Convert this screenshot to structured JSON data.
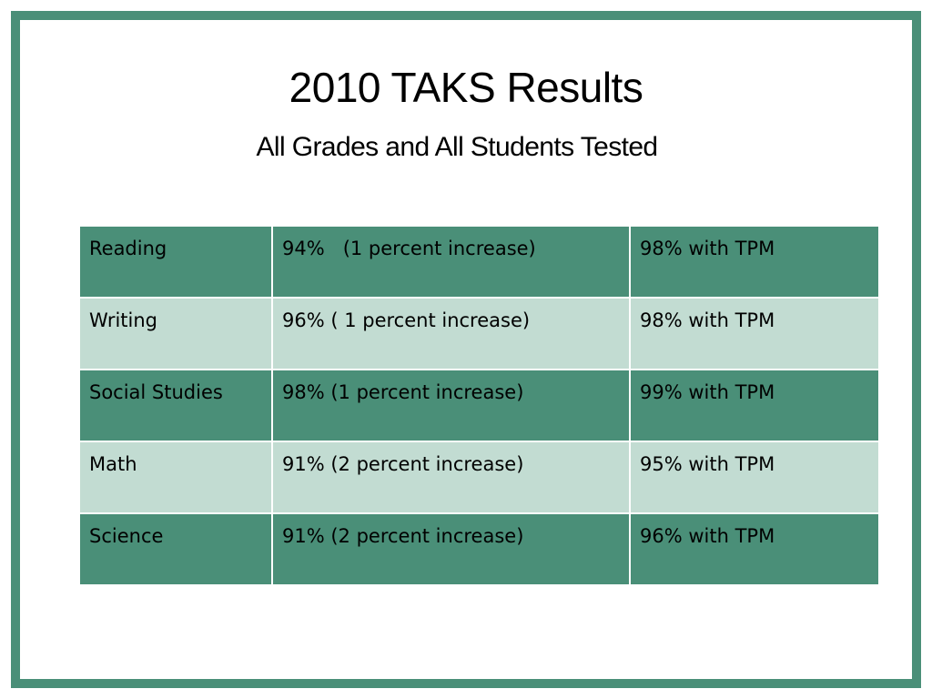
{
  "title": "2010 TAKS Results",
  "subtitle": "All Grades and All Students Tested",
  "colors": {
    "frame": "#4a8f78",
    "row_dark": "#4a8f78",
    "row_light": "#c2dcd2"
  },
  "table": {
    "rows": [
      {
        "subject": "Reading",
        "score": "94%   (1 percent increase)",
        "tpm": "98% with TPM"
      },
      {
        "subject": "Writing",
        "score": "96% ( 1 percent increase)",
        "tpm": "98% with TPM"
      },
      {
        "subject": "Social Studies",
        "score": "98% (1 percent increase)",
        "tpm": "99% with TPM"
      },
      {
        "subject": "Math",
        "score": "91% (2 percent increase)",
        "tpm": "95% with TPM"
      },
      {
        "subject": "Science",
        "score": "91% (2 percent increase)",
        "tpm": "96% with TPM"
      }
    ]
  }
}
